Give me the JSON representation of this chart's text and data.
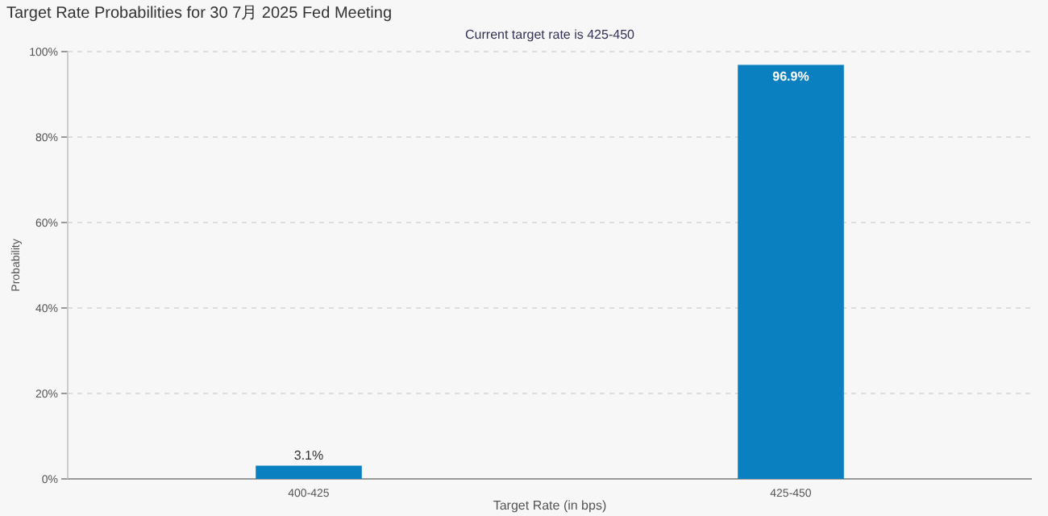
{
  "chart_data": {
    "type": "bar",
    "title": "Target Rate Probabilities for 30 7月 2025 Fed Meeting",
    "subtitle": "Current target rate is 425-450",
    "xlabel": "Target Rate (in bps)",
    "ylabel": "Probability",
    "categories": [
      "400-425",
      "425-450"
    ],
    "values": [
      3.1,
      96.9
    ],
    "value_labels": [
      "3.1%",
      "96.9%"
    ],
    "color": "#0a80c0",
    "ylim": [
      0,
      100
    ],
    "yticks": [
      {
        "value": 0,
        "label": "0%"
      },
      {
        "value": 20,
        "label": "20%"
      },
      {
        "value": 40,
        "label": "40%"
      },
      {
        "value": 60,
        "label": "60%"
      },
      {
        "value": 80,
        "label": "80%"
      },
      {
        "value": 100,
        "label": "100%"
      }
    ],
    "grid": "y"
  }
}
